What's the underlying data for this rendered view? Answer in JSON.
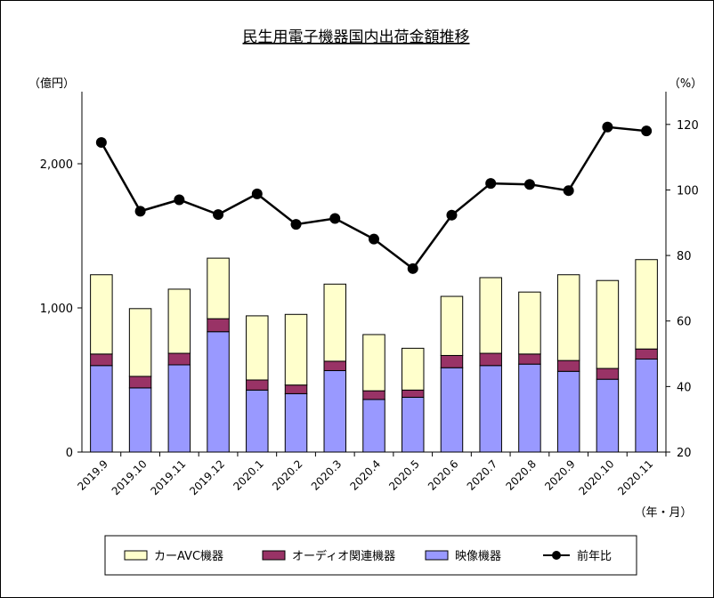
{
  "chart_data": {
    "type": "bar",
    "title": "民生用電子機器国内出荷金額推移",
    "y_left_unit": "（億円）",
    "y_right_unit": "（%）",
    "x_unit": "（年・月）",
    "categories": [
      "2019.9",
      "2019.10",
      "2019.11",
      "2019.12",
      "2020.1",
      "2020.2",
      "2020.3",
      "2020.4",
      "2020.5",
      "2020.6",
      "2020.7",
      "2020.8",
      "2020.9",
      "2020.10",
      "2020.11"
    ],
    "stacked": true,
    "series": [
      {
        "name": "映像機器",
        "color": "#9999ff",
        "values": [
          600,
          445,
          605,
          835,
          430,
          405,
          565,
          365,
          380,
          585,
          600,
          610,
          560,
          505,
          645
        ]
      },
      {
        "name": "オーディオ関連機器",
        "color": "#993366",
        "values": [
          80,
          80,
          80,
          90,
          70,
          60,
          65,
          60,
          50,
          85,
          85,
          70,
          75,
          75,
          70
        ]
      },
      {
        "name": "カーAVC機器",
        "color": "#ffffcc",
        "values": [
          550,
          470,
          445,
          420,
          445,
          490,
          535,
          390,
          290,
          410,
          525,
          430,
          595,
          610,
          620
        ]
      }
    ],
    "line": {
      "name": "前年比",
      "color": "#000000",
      "values": [
        114.5,
        93.5,
        97,
        92.5,
        98.8,
        89.5,
        91.3,
        85,
        76,
        92.3,
        102,
        101.7,
        99.8,
        119.2,
        118
      ]
    },
    "y_left": {
      "min": 0,
      "max": 2500,
      "ticks": [
        0,
        1000,
        2000
      ],
      "tick_labels": [
        "0",
        "1,000",
        "2,000"
      ]
    },
    "y_right": {
      "min": 20,
      "max": 130,
      "ticks": [
        20,
        40,
        60,
        80,
        100,
        120
      ],
      "tick_labels": [
        "20",
        "40",
        "60",
        "80",
        "100",
        "120"
      ]
    },
    "legend_position": "bottom",
    "grid": false
  }
}
